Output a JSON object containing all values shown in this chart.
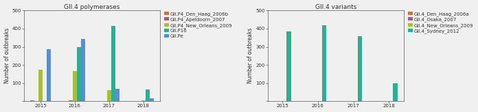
{
  "left_title": "GII.4 polymerases",
  "right_title": "GII.4 variants",
  "years": [
    2015,
    2016,
    2017,
    2018
  ],
  "ylabel": "Number of outbreaks",
  "ylim": [
    0,
    500
  ],
  "yticks": [
    0,
    100,
    200,
    300,
    400,
    500
  ],
  "left_series": [
    {
      "name": "GII.P4_Den_Haag_2006b",
      "values": [
        5,
        2,
        1,
        1
      ],
      "color": "#d4703a"
    },
    {
      "name": "GII.P4_Apeldoorn_2007",
      "values": [
        2,
        5,
        2,
        1
      ],
      "color": "#c0507a"
    },
    {
      "name": "GII.P4_New_Orleans_2009",
      "values": [
        175,
        165,
        60,
        5
      ],
      "color": "#a8c030"
    },
    {
      "name": "GII.P16",
      "values": [
        2,
        300,
        415,
        65
      ],
      "color": "#2ab090"
    },
    {
      "name": "GII.Pe",
      "values": [
        285,
        345,
        70,
        15
      ],
      "color": "#5590d0"
    }
  ],
  "right_series": [
    {
      "name": "GII.4_Den_Haag_2006a",
      "values": [
        0,
        0,
        0,
        0
      ],
      "color": "#d4703a"
    },
    {
      "name": "GII.4_Osaka_2007",
      "values": [
        0,
        0,
        0,
        0
      ],
      "color": "#c0507a"
    },
    {
      "name": "GII.4_New_Orleans_2009",
      "values": [
        0,
        0,
        0,
        0
      ],
      "color": "#a8c030"
    },
    {
      "name": "GII.4_Sydney_2012",
      "values": [
        385,
        420,
        360,
        100
      ],
      "color": "#2ab090"
    }
  ],
  "bg_color": "#f0f0f0",
  "plot_bg": "#f0f0f0",
  "text_color": "#303030",
  "bar_width": 0.12,
  "title_fontsize": 6.5,
  "label_fontsize": 5.5,
  "tick_fontsize": 5,
  "legend_fontsize": 5
}
